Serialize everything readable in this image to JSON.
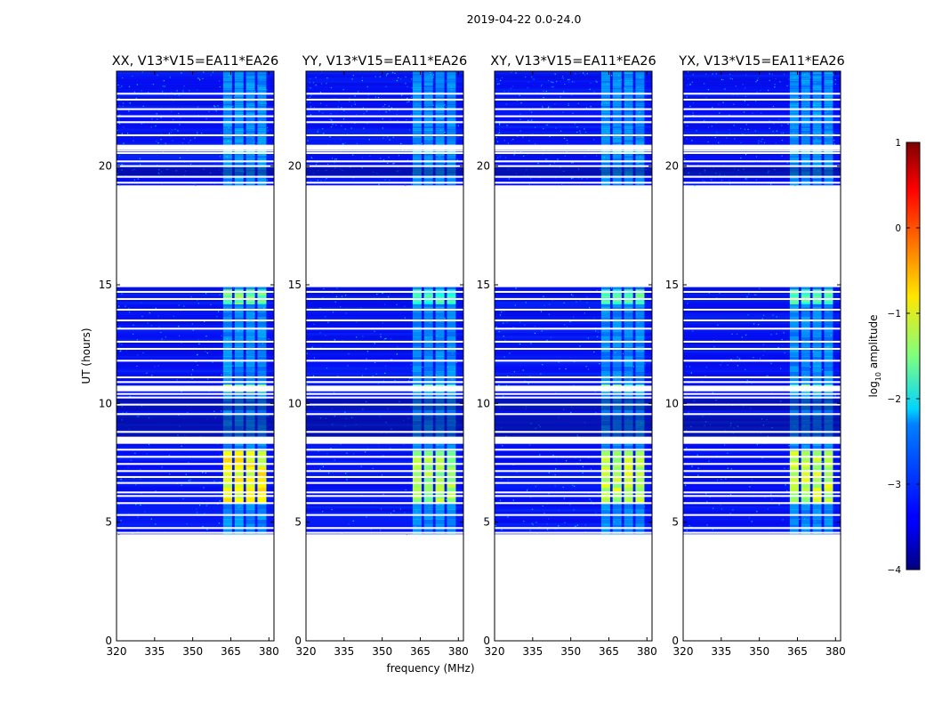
{
  "chart_data": {
    "type": "heatmap",
    "suptitle": "2019-04-22 0.0-24.0",
    "xlabel": "frequency (MHz)",
    "ylabel": "UT (hours)",
    "xlim": [
      320,
      382
    ],
    "ylim": [
      0,
      24
    ],
    "xticks": [
      320,
      335,
      350,
      365,
      380
    ],
    "yticks": [
      0,
      5,
      10,
      15,
      20
    ],
    "colorbar": {
      "label": "log10 amplitude",
      "label_main": "log",
      "label_sub": "10",
      "label_tail": " amplitude",
      "range": [
        -4,
        1
      ],
      "ticks": [
        -4,
        -3,
        -2,
        -1,
        0,
        1
      ]
    },
    "data_time_ranges_hours": [
      [
        4.5,
        14.9
      ],
      [
        19.2,
        24.0
      ]
    ],
    "rfi_band_mhz": [
      362,
      380
    ],
    "panels": [
      {
        "title": "XX, V13*V15=EA11*EA26",
        "rfi_strength": 1.0
      },
      {
        "title": "YY, V13*V15=EA11*EA26",
        "rfi_strength": 0.85
      },
      {
        "title": "XY, V13*V15=EA11*EA26",
        "rfi_strength": 0.9
      },
      {
        "title": "YX, V13*V15=EA11*EA26",
        "rfi_strength": 0.9
      }
    ]
  }
}
